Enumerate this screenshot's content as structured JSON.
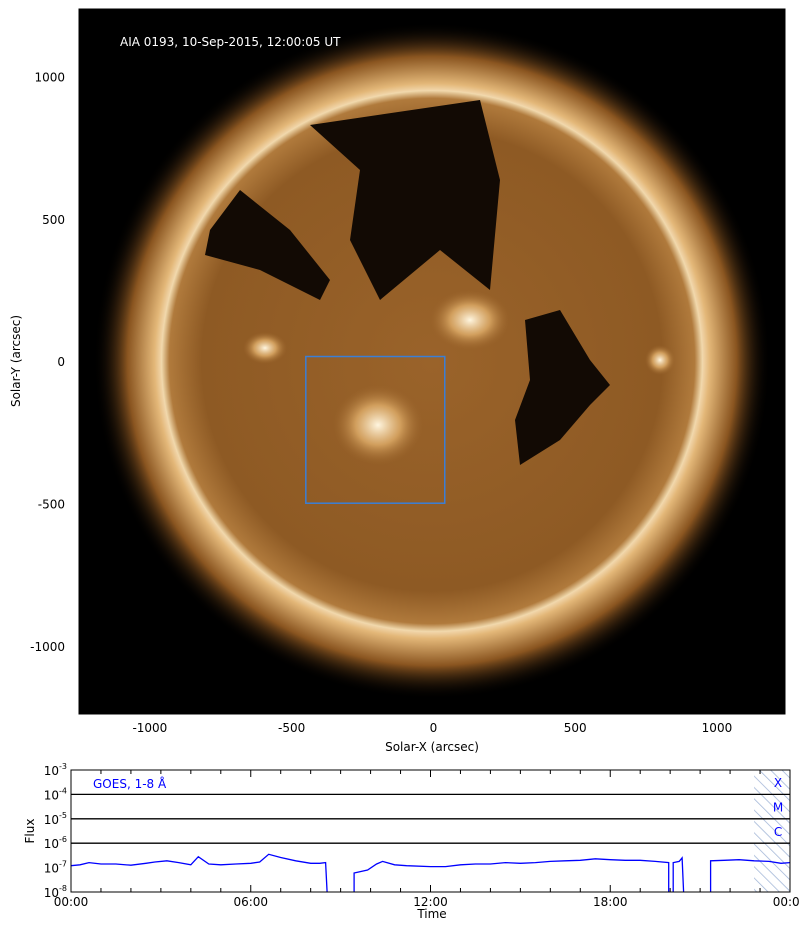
{
  "chart_data": [
    {
      "type": "image",
      "title": "AIA 0193, 10-Sep-2015, 12:00:05 UT",
      "xlabel": "Solar-X (arcsec)",
      "ylabel": "Solar-Y (arcsec)",
      "xlim": [
        -1250,
        1240
      ],
      "ylim": [
        -1235,
        1240
      ],
      "xticks": [
        -1000,
        -500,
        0,
        500,
        1000
      ],
      "xtick_labels": [
        "-1000",
        "-500",
        "0",
        "500",
        "1000"
      ],
      "yticks": [
        1000,
        500,
        0,
        -500,
        -1000
      ],
      "ytick_labels": [
        "1000",
        "500",
        "0",
        "-500",
        "-1000"
      ],
      "solar_radius_arcsec": 955,
      "colormap_colors": [
        "#000000",
        "#5a3510",
        "#a86f32",
        "#f5e6c8"
      ],
      "highlight_box": {
        "x": [
          -450,
          40
        ],
        "y": [
          -495,
          20
        ],
        "color": "#3b7fd6"
      }
    },
    {
      "type": "line",
      "title": "GOES, 1-8 Å",
      "xlabel": "Time",
      "ylabel": "Flux",
      "xlim_hours": [
        0,
        24
      ],
      "xtick_labels": [
        "00:00",
        "06:00",
        "12:00",
        "18:00",
        "00:00"
      ],
      "y_scale": "log",
      "ylim": [
        1e-08,
        0.001
      ],
      "ytick_labels": [
        {
          "base": "10",
          "exp": "-3"
        },
        {
          "base": "10",
          "exp": "-4"
        },
        {
          "base": "10",
          "exp": "-5"
        },
        {
          "base": "10",
          "exp": "-6"
        },
        {
          "base": "10",
          "exp": "-7"
        },
        {
          "base": "10",
          "exp": "-8"
        }
      ],
      "class_lines": [
        0.0001,
        1e-05,
        1e-06
      ],
      "class_labels": [
        "X",
        "M",
        "C"
      ],
      "hatched_region_hours": [
        22.8,
        24
      ],
      "series_color": "#0000ff",
      "series": [
        {
          "name": "GOES, 1-8 Å",
          "points": [
            [
              0,
              1.2e-07
            ],
            [
              0.3,
              1.3e-07
            ],
            [
              0.6,
              1.6e-07
            ],
            [
              1.0,
              1.4e-07
            ],
            [
              1.5,
              1.4e-07
            ],
            [
              2.0,
              1.25e-07
            ],
            [
              2.5,
              1.5e-07
            ],
            [
              2.8,
              1.7e-07
            ],
            [
              3.2,
              1.9e-07
            ],
            [
              3.6,
              1.6e-07
            ],
            [
              4.0,
              1.3e-07
            ],
            [
              4.25,
              2.8e-07
            ],
            [
              4.6,
              1.4e-07
            ],
            [
              5.0,
              1.3e-07
            ],
            [
              5.5,
              1.4e-07
            ],
            [
              6.0,
              1.5e-07
            ],
            [
              6.3,
              1.7e-07
            ],
            [
              6.6,
              3.5e-07
            ],
            [
              7.0,
              2.6e-07
            ],
            [
              7.5,
              1.9e-07
            ],
            [
              8.0,
              1.5e-07
            ],
            [
              8.3,
              1.5e-07
            ],
            [
              8.5,
              1.6e-07
            ],
            [
              8.55,
              1e-08
            ],
            null,
            [
              9.45,
              1e-08
            ],
            [
              9.45,
              6e-08
            ],
            [
              9.9,
              8e-08
            ],
            [
              10.2,
              1.4e-07
            ],
            [
              10.4,
              1.8e-07
            ],
            [
              10.8,
              1.3e-07
            ],
            [
              11.2,
              1.2e-07
            ],
            [
              12.0,
              1.1e-07
            ],
            [
              12.5,
              1.1e-07
            ],
            [
              13.0,
              1.3e-07
            ],
            [
              13.5,
              1.4e-07
            ],
            [
              14.0,
              1.4e-07
            ],
            [
              14.5,
              1.6e-07
            ],
            [
              15.0,
              1.5e-07
            ],
            [
              15.5,
              1.6e-07
            ],
            [
              16.0,
              1.8e-07
            ],
            [
              16.5,
              1.9e-07
            ],
            [
              17.0,
              2e-07
            ],
            [
              17.5,
              2.3e-07
            ],
            [
              18.0,
              2.1e-07
            ],
            [
              18.5,
              2e-07
            ],
            [
              19.0,
              2e-07
            ],
            [
              19.5,
              1.8e-07
            ],
            [
              19.95,
              1.6e-07
            ],
            [
              19.95,
              1e-08
            ],
            null,
            [
              20.1,
              1e-08
            ],
            [
              20.1,
              1.6e-07
            ],
            [
              20.3,
              1.8e-07
            ],
            [
              20.4,
              2.5e-07
            ],
            [
              20.45,
              1e-08
            ],
            null,
            [
              21.35,
              1e-08
            ],
            [
              21.35,
              1.9e-07
            ],
            [
              21.8,
              2e-07
            ],
            [
              22.3,
              2.1e-07
            ],
            [
              22.8,
              1.9e-07
            ],
            [
              23.3,
              1.8e-07
            ],
            [
              23.7,
              1.5e-07
            ],
            [
              24,
              1.6e-07
            ]
          ]
        }
      ]
    }
  ]
}
